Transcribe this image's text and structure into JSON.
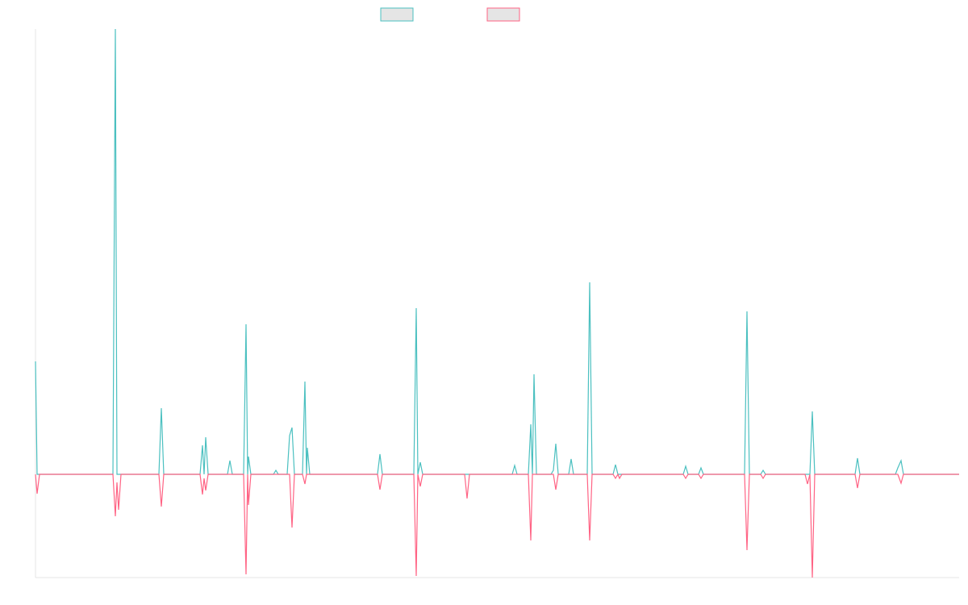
{
  "chart_data": {
    "type": "line",
    "x": [
      0,
      2,
      5,
      96,
      99,
      101,
      103,
      106,
      153,
      156,
      159,
      204,
      207,
      209,
      211,
      214,
      238,
      241,
      244,
      258,
      261,
      263,
      264,
      267,
      295,
      298,
      301,
      312,
      315,
      318,
      321,
      331,
      334,
      336,
      337,
      340,
      424,
      427,
      430,
      469,
      472,
      474,
      477,
      480,
      532,
      535,
      538,
      591,
      594,
      597,
      611,
      614,
      616,
      618,
      621,
      639,
      642,
      645,
      648,
      661,
      664,
      667,
      684,
      687,
      690,
      716,
      719,
      722,
      724,
      727,
      803,
      806,
      809,
      822,
      825,
      828,
      879,
      882,
      885,
      899,
      902,
      905,
      954,
      957,
      960,
      963,
      966,
      1016,
      1019,
      1022,
      1066,
      1069,
      1073,
      1076,
      1145
    ],
    "series": [
      {
        "color": "#4bc0c0",
        "values": [
          140,
          0,
          0,
          0,
          552,
          0,
          0,
          0,
          0,
          82,
          0,
          0,
          36,
          0,
          46,
          0,
          0,
          17,
          0,
          0,
          186,
          0,
          22,
          0,
          0,
          5,
          0,
          0,
          48,
          58,
          0,
          0,
          115,
          0,
          33,
          0,
          0,
          25,
          0,
          0,
          206,
          0,
          15,
          0,
          0,
          0,
          0,
          0,
          11,
          0,
          0,
          62,
          0,
          124,
          0,
          0,
          5,
          38,
          0,
          0,
          19,
          0,
          0,
          238,
          0,
          0,
          12,
          0,
          0,
          0,
          0,
          10,
          0,
          0,
          8,
          0,
          0,
          202,
          0,
          0,
          5,
          0,
          0,
          0,
          0,
          78,
          0,
          0,
          20,
          0,
          0,
          8,
          17,
          0,
          0
        ]
      },
      {
        "color": "#ff6384",
        "values": [
          0,
          -24,
          0,
          0,
          -52,
          -10,
          -44,
          0,
          0,
          -40,
          0,
          0,
          -25,
          -5,
          -20,
          0,
          0,
          0,
          0,
          0,
          -124,
          0,
          -38,
          0,
          0,
          0,
          0,
          0,
          0,
          -66,
          0,
          0,
          -12,
          0,
          0,
          0,
          0,
          -19,
          0,
          0,
          -126,
          0,
          -15,
          0,
          0,
          -30,
          0,
          0,
          0,
          0,
          0,
          -82,
          0,
          0,
          0,
          0,
          0,
          -19,
          0,
          0,
          0,
          0,
          0,
          -82,
          0,
          0,
          -5,
          0,
          -5,
          0,
          0,
          -5,
          0,
          0,
          -5,
          0,
          0,
          -94,
          0,
          0,
          -5,
          0,
          0,
          -12,
          0,
          -128,
          0,
          0,
          -17,
          0,
          0,
          0,
          -11,
          0,
          0
        ]
      }
    ],
    "xlim": [
      0,
      1145
    ],
    "ylim": [
      -128,
      552
    ]
  }
}
